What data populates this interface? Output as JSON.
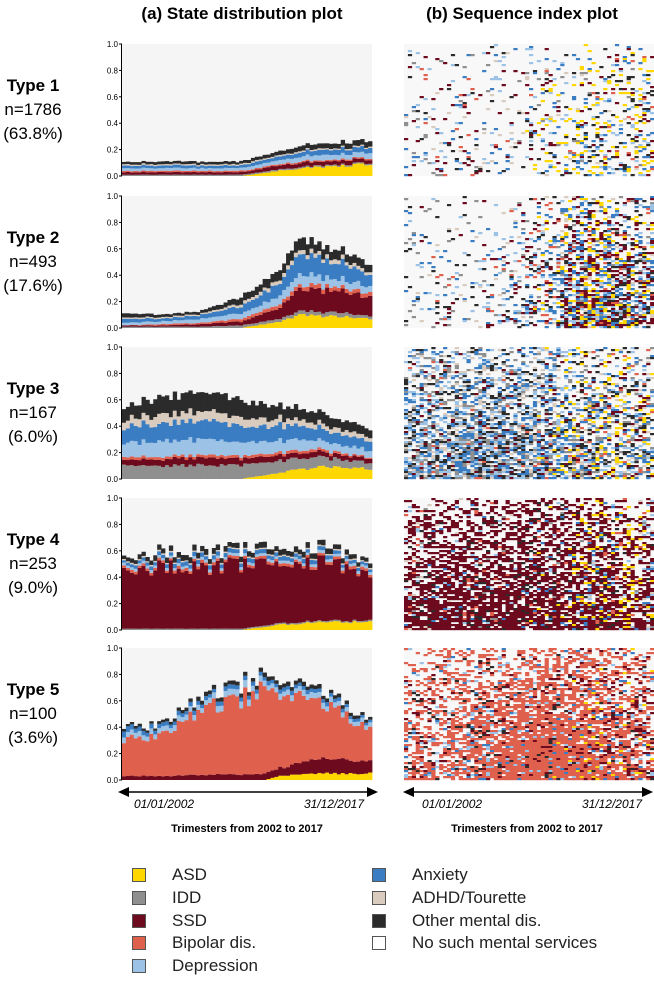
{
  "headers": {
    "left": "(a) State distribution plot",
    "right": "(b) Sequence index plot"
  },
  "types": [
    {
      "title": "Type 1",
      "n": "n=1786",
      "pct": "(63.8%)"
    },
    {
      "title": "Type 2",
      "n": "n=493",
      "pct": "(17.6%)"
    },
    {
      "title": "Type 3",
      "n": "n=167",
      "pct": "(6.0%)"
    },
    {
      "title": "Type 4",
      "n": "n=253",
      "pct": "(9.0%)"
    },
    {
      "title": "Type 5",
      "n": "n=100",
      "pct": "(3.6%)"
    }
  ],
  "axis": {
    "start_label": "01/01/2002",
    "end_label": "31/12/2017",
    "xlabel": "Trimesters from 2002 to 2017"
  },
  "legend": [
    {
      "label": "ASD",
      "color": "#FFD700"
    },
    {
      "label": "IDD",
      "color": "#8F8F8F"
    },
    {
      "label": "SSD",
      "color": "#6E0A1E"
    },
    {
      "label": "Bipolar dis.",
      "color": "#E0604E"
    },
    {
      "label": "Depression",
      "color": "#9CC3E6"
    },
    {
      "label": "Anxiety",
      "color": "#3A7DC2"
    },
    {
      "label": "ADHD/Tourette",
      "color": "#D9CBBE"
    },
    {
      "label": "Other mental dis.",
      "color": "#2B2B2B"
    },
    {
      "label": "No such mental services",
      "color": "#FFFFFF"
    }
  ],
  "chart_data": [
    {
      "type": "area",
      "title": "Type 1",
      "ylim": [
        0,
        1.0
      ],
      "yticks": [
        "0.0",
        "0.2",
        "0.4",
        "0.6",
        "0.8",
        "1.0"
      ],
      "knots": [
        0,
        10,
        20,
        30,
        40,
        50,
        63
      ],
      "series": [
        {
          "name": "ASD",
          "values": [
            0,
            0,
            0,
            0.0,
            0.04,
            0.07,
            0.09
          ]
        },
        {
          "name": "IDD",
          "values": [
            0.01,
            0.01,
            0.01,
            0.01,
            0.01,
            0.01,
            0.01
          ]
        },
        {
          "name": "SSD",
          "values": [
            0.02,
            0.02,
            0.02,
            0.02,
            0.03,
            0.03,
            0.03
          ]
        },
        {
          "name": "Bipolar dis.",
          "values": [
            0.01,
            0.01,
            0.01,
            0.01,
            0.01,
            0.01,
            0.01
          ]
        },
        {
          "name": "Depression",
          "values": [
            0.02,
            0.02,
            0.02,
            0.02,
            0.03,
            0.04,
            0.04
          ]
        },
        {
          "name": "Anxiety",
          "values": [
            0.02,
            0.02,
            0.02,
            0.02,
            0.03,
            0.04,
            0.04
          ]
        },
        {
          "name": "ADHD/Tourette",
          "values": [
            0.01,
            0.01,
            0.01,
            0.01,
            0.01,
            0.01,
            0.01
          ]
        },
        {
          "name": "Other mental dis.",
          "values": [
            0.02,
            0.02,
            0.02,
            0.02,
            0.03,
            0.04,
            0.04
          ]
        }
      ]
    },
    {
      "type": "area",
      "title": "Type 2",
      "ylim": [
        0,
        1.0
      ],
      "yticks": [
        "0.0",
        "0.2",
        "0.4",
        "0.6",
        "0.8",
        "1.0"
      ],
      "knots": [
        0,
        10,
        20,
        30,
        40,
        45,
        50,
        55,
        63
      ],
      "series": [
        {
          "name": "ASD",
          "values": [
            0,
            0,
            0,
            0.0,
            0.05,
            0.1,
            0.09,
            0.09,
            0.07
          ]
        },
        {
          "name": "IDD",
          "values": [
            0.01,
            0.01,
            0.01,
            0.02,
            0.02,
            0.03,
            0.03,
            0.03,
            0.02
          ]
        },
        {
          "name": "SSD",
          "values": [
            0.01,
            0.01,
            0.02,
            0.03,
            0.09,
            0.16,
            0.17,
            0.17,
            0.14
          ]
        },
        {
          "name": "Bipolar dis.",
          "values": [
            0.0,
            0.01,
            0.01,
            0.02,
            0.03,
            0.03,
            0.03,
            0.03,
            0.03
          ]
        },
        {
          "name": "Depression",
          "values": [
            0.02,
            0.02,
            0.03,
            0.04,
            0.06,
            0.08,
            0.07,
            0.06,
            0.05
          ]
        },
        {
          "name": "Anxiety",
          "values": [
            0.03,
            0.02,
            0.03,
            0.05,
            0.1,
            0.15,
            0.14,
            0.12,
            0.09
          ]
        },
        {
          "name": "ADHD/Tourette",
          "values": [
            0.01,
            0.01,
            0.01,
            0.02,
            0.03,
            0.03,
            0.03,
            0.03,
            0.02
          ]
        },
        {
          "name": "Other mental dis.",
          "values": [
            0.03,
            0.02,
            0.02,
            0.05,
            0.07,
            0.1,
            0.07,
            0.07,
            0.06
          ]
        }
      ]
    },
    {
      "type": "area",
      "title": "Type 3",
      "ylim": [
        0,
        1.0
      ],
      "yticks": [
        "0.0",
        "0.2",
        "0.4",
        "0.6",
        "0.8",
        "1.0"
      ],
      "knots": [
        0,
        10,
        20,
        30,
        40,
        50,
        63
      ],
      "series": [
        {
          "name": "ASD",
          "values": [
            0,
            0,
            0,
            0.0,
            0.05,
            0.09,
            0.08
          ]
        },
        {
          "name": "IDD",
          "values": [
            0.1,
            0.1,
            0.11,
            0.1,
            0.09,
            0.07,
            0.05
          ]
        },
        {
          "name": "SSD",
          "values": [
            0.04,
            0.05,
            0.06,
            0.05,
            0.04,
            0.04,
            0.03
          ]
        },
        {
          "name": "Bipolar dis.",
          "values": [
            0.02,
            0.02,
            0.02,
            0.02,
            0.02,
            0.02,
            0.01
          ]
        },
        {
          "name": "Depression",
          "values": [
            0.1,
            0.12,
            0.12,
            0.1,
            0.09,
            0.07,
            0.05
          ]
        },
        {
          "name": "Anxiety",
          "values": [
            0.12,
            0.14,
            0.15,
            0.12,
            0.11,
            0.09,
            0.07
          ]
        },
        {
          "name": "ADHD/Tourette",
          "values": [
            0.06,
            0.07,
            0.07,
            0.06,
            0.05,
            0.04,
            0.03
          ]
        },
        {
          "name": "Other mental dis.",
          "values": [
            0.1,
            0.13,
            0.15,
            0.13,
            0.1,
            0.08,
            0.06
          ]
        }
      ]
    },
    {
      "type": "area",
      "title": "Type 4",
      "ylim": [
        0,
        1.0
      ],
      "yticks": [
        "0.0",
        "0.2",
        "0.4",
        "0.6",
        "0.8",
        "1.0"
      ],
      "knots": [
        0,
        10,
        20,
        30,
        40,
        50,
        63
      ],
      "series": [
        {
          "name": "ASD",
          "values": [
            0,
            0,
            0,
            0.0,
            0.04,
            0.06,
            0.06
          ]
        },
        {
          "name": "IDD",
          "values": [
            0.01,
            0.01,
            0.01,
            0.01,
            0.01,
            0.01,
            0.01
          ]
        },
        {
          "name": "SSD",
          "values": [
            0.45,
            0.46,
            0.47,
            0.49,
            0.47,
            0.45,
            0.36
          ]
        },
        {
          "name": "Bipolar dis.",
          "values": [
            0.02,
            0.02,
            0.02,
            0.02,
            0.02,
            0.02,
            0.02
          ]
        },
        {
          "name": "Depression",
          "values": [
            0.02,
            0.02,
            0.02,
            0.02,
            0.02,
            0.02,
            0.02
          ]
        },
        {
          "name": "Anxiety",
          "values": [
            0.02,
            0.03,
            0.03,
            0.03,
            0.03,
            0.03,
            0.02
          ]
        },
        {
          "name": "ADHD/Tourette",
          "values": [
            0.01,
            0.01,
            0.01,
            0.01,
            0.01,
            0.01,
            0.01
          ]
        },
        {
          "name": "Other mental dis.",
          "values": [
            0.03,
            0.04,
            0.04,
            0.04,
            0.04,
            0.04,
            0.03
          ]
        }
      ]
    },
    {
      "type": "area",
      "title": "Type 5",
      "ylim": [
        0,
        1.0
      ],
      "yticks": [
        "0.0",
        "0.2",
        "0.4",
        "0.6",
        "0.8",
        "1.0"
      ],
      "knots": [
        0,
        10,
        20,
        30,
        36,
        40,
        50,
        63
      ],
      "series": [
        {
          "name": "ASD",
          "values": [
            0,
            0,
            0,
            0.0,
            0.0,
            0.03,
            0.05,
            0.05
          ]
        },
        {
          "name": "IDD",
          "values": [
            0.0,
            0.0,
            0.0,
            0.0,
            0.0,
            0.0,
            0.0,
            0.0
          ]
        },
        {
          "name": "SSD",
          "values": [
            0.03,
            0.03,
            0.04,
            0.04,
            0.05,
            0.06,
            0.12,
            0.09
          ]
        },
        {
          "name": "Bipolar dis.",
          "values": [
            0.27,
            0.33,
            0.48,
            0.58,
            0.64,
            0.57,
            0.44,
            0.24
          ]
        },
        {
          "name": "Depression",
          "values": [
            0.04,
            0.04,
            0.04,
            0.05,
            0.04,
            0.04,
            0.04,
            0.03
          ]
        },
        {
          "name": "Anxiety",
          "values": [
            0.04,
            0.03,
            0.03,
            0.03,
            0.03,
            0.03,
            0.03,
            0.02
          ]
        },
        {
          "name": "ADHD/Tourette",
          "values": [
            0.0,
            0.0,
            0.0,
            0.0,
            0.0,
            0.0,
            0.0,
            0.0
          ]
        },
        {
          "name": "Other mental dis.",
          "values": [
            0.02,
            0.02,
            0.03,
            0.03,
            0.03,
            0.03,
            0.03,
            0.02
          ]
        }
      ]
    }
  ]
}
